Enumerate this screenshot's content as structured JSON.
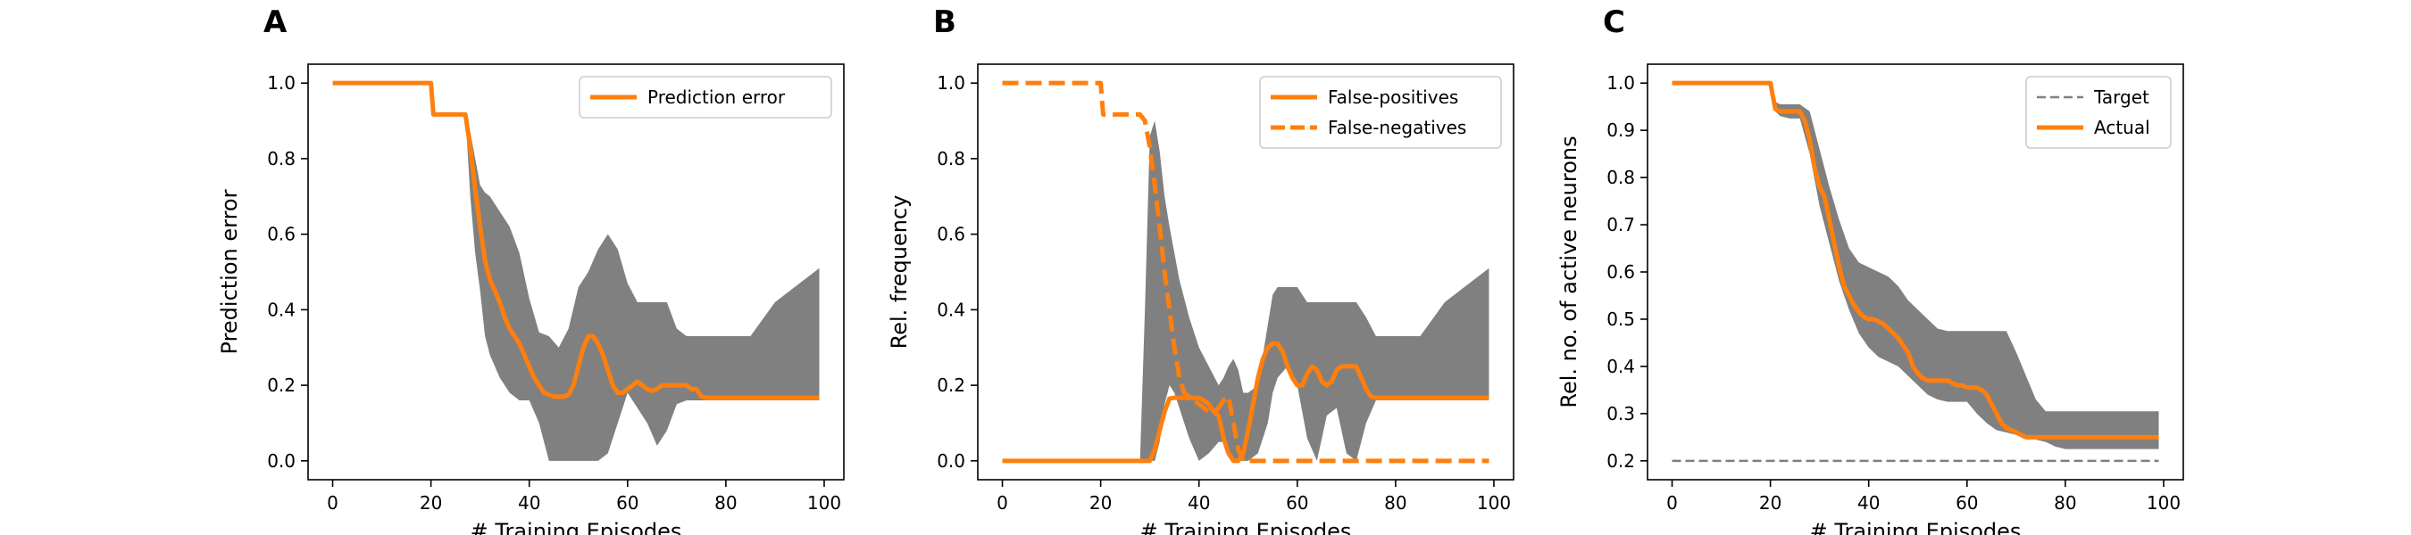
{
  "figure": {
    "panel_count": 3
  },
  "chart_data": [
    {
      "panel": "A",
      "type": "line",
      "xlabel": "# Training Episodes",
      "ylabel": "Prediction error",
      "xlim": [
        -5,
        104
      ],
      "ylim": [
        -0.05,
        1.05
      ],
      "xticks": [
        0,
        20,
        40,
        60,
        80,
        100
      ],
      "yticks": [
        0.0,
        0.2,
        0.4,
        0.6,
        0.8,
        1.0
      ],
      "tick_decimals": 1,
      "legend_position": "top-right",
      "band": {
        "color": "#808080",
        "x": [
          27,
          28,
          29,
          30,
          31,
          32,
          34,
          36,
          38,
          40,
          42,
          44,
          46,
          48,
          50,
          52,
          54,
          56,
          58,
          60,
          62,
          64,
          66,
          68,
          70,
          72,
          74,
          76,
          78,
          80,
          85,
          90,
          99
        ],
        "upper": [
          0.92,
          0.87,
          0.8,
          0.73,
          0.71,
          0.7,
          0.66,
          0.62,
          0.55,
          0.43,
          0.34,
          0.33,
          0.3,
          0.35,
          0.46,
          0.5,
          0.56,
          0.6,
          0.56,
          0.47,
          0.42,
          0.42,
          0.42,
          0.42,
          0.35,
          0.33,
          0.33,
          0.33,
          0.33,
          0.33,
          0.33,
          0.42,
          0.51
        ],
        "lower": [
          0.92,
          0.7,
          0.55,
          0.45,
          0.33,
          0.28,
          0.22,
          0.18,
          0.16,
          0.16,
          0.1,
          0.0,
          0.0,
          0.0,
          0.0,
          0.0,
          0.0,
          0.02,
          0.1,
          0.18,
          0.14,
          0.1,
          0.04,
          0.08,
          0.15,
          0.16,
          0.16,
          0.16,
          0.16,
          0.16,
          0.16,
          0.16,
          0.16
        ]
      },
      "series": [
        {
          "name": "Prediction error",
          "color": "#ff7f0e",
          "style": "solid",
          "x": [
            0,
            20,
            20.5,
            27,
            28,
            29,
            30,
            31,
            32,
            33,
            34,
            35,
            36,
            37,
            38,
            39,
            40,
            41,
            42,
            43,
            44,
            45,
            46,
            47,
            48,
            49,
            50,
            51,
            52,
            53,
            54,
            55,
            56,
            57,
            58,
            59,
            60,
            61,
            62,
            63,
            64,
            65,
            66,
            67,
            68,
            69,
            70,
            71,
            72,
            73,
            74,
            75,
            76,
            77,
            78,
            79,
            80,
            90,
            99
          ],
          "y": [
            1.0,
            1.0,
            0.917,
            0.917,
            0.83,
            0.72,
            0.62,
            0.53,
            0.48,
            0.45,
            0.42,
            0.38,
            0.35,
            0.33,
            0.31,
            0.28,
            0.25,
            0.22,
            0.2,
            0.18,
            0.175,
            0.17,
            0.17,
            0.17,
            0.175,
            0.2,
            0.25,
            0.3,
            0.33,
            0.33,
            0.31,
            0.28,
            0.24,
            0.2,
            0.18,
            0.18,
            0.19,
            0.2,
            0.21,
            0.2,
            0.19,
            0.185,
            0.19,
            0.2,
            0.2,
            0.2,
            0.2,
            0.2,
            0.2,
            0.19,
            0.19,
            0.17,
            0.167,
            0.167,
            0.167,
            0.167,
            0.167,
            0.167,
            0.167
          ]
        }
      ]
    },
    {
      "panel": "B",
      "type": "line",
      "xlabel": "# Training Episodes",
      "ylabel": "Rel. frequency",
      "xlim": [
        -5,
        104
      ],
      "ylim": [
        -0.05,
        1.05
      ],
      "xticks": [
        0,
        20,
        40,
        60,
        80,
        100
      ],
      "yticks": [
        0.0,
        0.2,
        0.4,
        0.6,
        0.8,
        1.0
      ],
      "tick_decimals": 1,
      "legend_position": "top-right",
      "band": {
        "color": "#808080",
        "x": [
          28,
          29,
          30,
          31,
          32,
          33,
          34,
          35,
          36,
          38,
          40,
          42,
          44,
          45,
          46,
          47,
          48,
          49,
          50,
          52,
          54,
          55,
          56,
          58,
          60,
          62,
          64,
          66,
          68,
          70,
          72,
          74,
          76,
          78,
          80,
          85,
          90,
          99
        ],
        "upper": [
          0.0,
          0.4,
          0.86,
          0.9,
          0.82,
          0.7,
          0.62,
          0.55,
          0.48,
          0.38,
          0.3,
          0.25,
          0.2,
          0.22,
          0.25,
          0.27,
          0.24,
          0.18,
          0.18,
          0.2,
          0.36,
          0.44,
          0.46,
          0.46,
          0.46,
          0.42,
          0.42,
          0.42,
          0.42,
          0.42,
          0.42,
          0.38,
          0.33,
          0.33,
          0.33,
          0.33,
          0.42,
          0.51
        ],
        "lower": [
          0.0,
          0.0,
          0.0,
          0.0,
          0.05,
          0.15,
          0.2,
          0.18,
          0.14,
          0.06,
          0.0,
          0.02,
          0.05,
          0.05,
          0.02,
          0.0,
          0.0,
          0.0,
          0.0,
          0.02,
          0.1,
          0.18,
          0.22,
          0.25,
          0.2,
          0.06,
          0.0,
          0.12,
          0.14,
          0.02,
          0.0,
          0.1,
          0.16,
          0.16,
          0.16,
          0.16,
          0.16,
          0.16
        ]
      },
      "series": [
        {
          "name": "False-positives",
          "color": "#ff7f0e",
          "style": "solid",
          "x": [
            0,
            30,
            31,
            32,
            33,
            34,
            35,
            36,
            37,
            38,
            39,
            40,
            41,
            42,
            43,
            44,
            45,
            46,
            47,
            48,
            49,
            50,
            51,
            52,
            53,
            54,
            55,
            56,
            57,
            58,
            59,
            60,
            61,
            62,
            63,
            64,
            65,
            66,
            67,
            68,
            69,
            70,
            71,
            72,
            73,
            74,
            75,
            76,
            77,
            78,
            79,
            80,
            90,
            99
          ],
          "y": [
            0.0,
            0.0,
            0.03,
            0.08,
            0.13,
            0.165,
            0.167,
            0.167,
            0.167,
            0.167,
            0.167,
            0.167,
            0.16,
            0.15,
            0.13,
            0.12,
            0.06,
            0.02,
            0.0,
            0.0,
            0.02,
            0.08,
            0.15,
            0.22,
            0.27,
            0.3,
            0.31,
            0.31,
            0.29,
            0.25,
            0.22,
            0.2,
            0.2,
            0.23,
            0.25,
            0.24,
            0.21,
            0.2,
            0.21,
            0.24,
            0.25,
            0.25,
            0.25,
            0.25,
            0.22,
            0.19,
            0.17,
            0.167,
            0.167,
            0.167,
            0.167,
            0.167,
            0.167,
            0.167
          ]
        },
        {
          "name": "False-negatives",
          "color": "#ff7f0e",
          "style": "dashed",
          "x": [
            0,
            20,
            20.5,
            27,
            28,
            29,
            30,
            31,
            32,
            33,
            34,
            35,
            36,
            37,
            38,
            39,
            40,
            41,
            42,
            43,
            44,
            45,
            46,
            47,
            48,
            49,
            50,
            55,
            60,
            70,
            80,
            90,
            99
          ],
          "y": [
            1.0,
            1.0,
            0.917,
            0.917,
            0.917,
            0.9,
            0.83,
            0.73,
            0.62,
            0.5,
            0.4,
            0.3,
            0.22,
            0.18,
            0.17,
            0.16,
            0.15,
            0.14,
            0.13,
            0.13,
            0.14,
            0.16,
            0.17,
            0.1,
            0.03,
            0.0,
            0.0,
            0.0,
            0.0,
            0.0,
            0.0,
            0.0,
            0.0
          ]
        }
      ]
    },
    {
      "panel": "C",
      "type": "line",
      "xlabel": "# Training Episodes",
      "ylabel": "Rel. no. of active neurons",
      "xlim": [
        -5,
        104
      ],
      "ylim": [
        0.16,
        1.04
      ],
      "xticks": [
        0,
        20,
        40,
        60,
        80,
        100
      ],
      "yticks": [
        0.2,
        0.3,
        0.4,
        0.5,
        0.6,
        0.7,
        0.8,
        0.9,
        1.0
      ],
      "tick_decimals": 1,
      "legend_position": "top-right",
      "band": {
        "color": "#808080",
        "x": [
          20,
          21,
          22,
          24,
          26,
          28,
          30,
          32,
          34,
          36,
          38,
          40,
          42,
          44,
          46,
          48,
          50,
          52,
          54,
          56,
          58,
          60,
          62,
          64,
          66,
          68,
          70,
          72,
          74,
          76,
          78,
          80,
          90,
          99
        ],
        "upper": [
          1.0,
          0.96,
          0.955,
          0.955,
          0.955,
          0.94,
          0.86,
          0.78,
          0.71,
          0.65,
          0.62,
          0.61,
          0.6,
          0.59,
          0.57,
          0.54,
          0.52,
          0.5,
          0.48,
          0.475,
          0.475,
          0.475,
          0.475,
          0.475,
          0.475,
          0.475,
          0.43,
          0.38,
          0.33,
          0.305,
          0.305,
          0.305,
          0.305,
          0.305
        ],
        "lower": [
          1.0,
          0.94,
          0.93,
          0.925,
          0.925,
          0.85,
          0.74,
          0.66,
          0.58,
          0.52,
          0.47,
          0.44,
          0.42,
          0.41,
          0.4,
          0.38,
          0.36,
          0.34,
          0.33,
          0.325,
          0.325,
          0.325,
          0.3,
          0.28,
          0.265,
          0.26,
          0.255,
          0.25,
          0.245,
          0.24,
          0.23,
          0.225,
          0.225,
          0.225
        ]
      },
      "series": [
        {
          "name": "Target",
          "color": "#7f7f7f",
          "style": "dashed-thin",
          "x": [
            0,
            99
          ],
          "y": [
            0.2,
            0.2
          ]
        },
        {
          "name": "Actual",
          "color": "#ff7f0e",
          "style": "solid",
          "x": [
            0,
            20,
            21,
            22,
            23,
            24,
            25,
            26,
            27,
            28,
            29,
            30,
            31,
            32,
            33,
            34,
            35,
            36,
            37,
            38,
            39,
            40,
            41,
            42,
            43,
            44,
            45,
            46,
            47,
            48,
            49,
            50,
            51,
            52,
            53,
            54,
            55,
            56,
            57,
            58,
            59,
            60,
            61,
            62,
            63,
            64,
            65,
            66,
            67,
            68,
            69,
            70,
            71,
            72,
            73,
            74,
            75,
            76,
            77,
            78,
            79,
            80,
            90,
            99
          ],
          "y": [
            1.0,
            1.0,
            0.945,
            0.94,
            0.94,
            0.94,
            0.94,
            0.94,
            0.92,
            0.88,
            0.82,
            0.78,
            0.76,
            0.71,
            0.66,
            0.61,
            0.57,
            0.55,
            0.53,
            0.515,
            0.505,
            0.5,
            0.5,
            0.495,
            0.49,
            0.48,
            0.47,
            0.46,
            0.445,
            0.43,
            0.4,
            0.385,
            0.375,
            0.37,
            0.37,
            0.37,
            0.37,
            0.37,
            0.365,
            0.36,
            0.36,
            0.355,
            0.355,
            0.355,
            0.35,
            0.34,
            0.32,
            0.3,
            0.28,
            0.27,
            0.265,
            0.26,
            0.255,
            0.25,
            0.25,
            0.25,
            0.25,
            0.25,
            0.25,
            0.25,
            0.25,
            0.25,
            0.25,
            0.25
          ]
        }
      ]
    }
  ]
}
